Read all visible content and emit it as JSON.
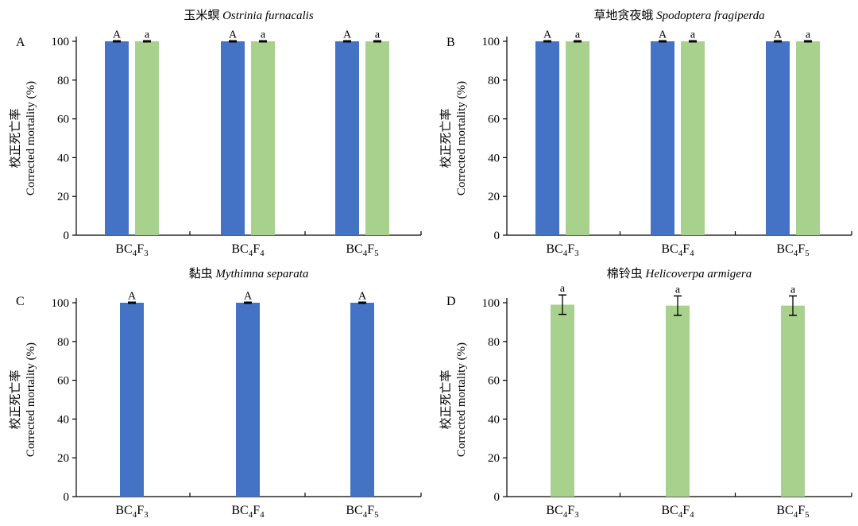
{
  "colors": {
    "blue": "#4472c4",
    "green": "#a9d18e",
    "axis": "#000000"
  },
  "chart_data": [
    {
      "panel": "A",
      "type": "bar",
      "title_cn": "玉米螟",
      "title_latin": "Ostrinia furnacalis",
      "ylabel_cn": "校正死亡率",
      "ylabel_en": "Corrected mortality (%)",
      "ylim": [
        0,
        100
      ],
      "yticks": [
        0,
        20,
        40,
        60,
        80,
        100
      ],
      "categories": [
        {
          "base": "BC",
          "sub1": "4",
          "mid": "F",
          "sub2": "3"
        },
        {
          "base": "BC",
          "sub1": "4",
          "mid": "F",
          "sub2": "4"
        },
        {
          "base": "BC",
          "sub1": "4",
          "mid": "F",
          "sub2": "5"
        }
      ],
      "series": [
        {
          "color": "blue",
          "values": [
            100,
            100,
            100
          ],
          "errors": [
            0.3,
            0.3,
            0.3
          ],
          "labels": [
            "A",
            "A",
            "A"
          ]
        },
        {
          "color": "green",
          "values": [
            100,
            100,
            100
          ],
          "errors": [
            0.3,
            0.3,
            0.3
          ],
          "labels": [
            "a",
            "a",
            "a"
          ]
        }
      ]
    },
    {
      "panel": "B",
      "type": "bar",
      "title_cn": "草地贪夜蛾",
      "title_latin": "Spodoptera fragiperda",
      "ylabel_cn": "校正死亡率",
      "ylabel_en": "Corrected mortality (%)",
      "ylim": [
        0,
        100
      ],
      "yticks": [
        0,
        20,
        40,
        60,
        80,
        100
      ],
      "categories": [
        {
          "base": "BC",
          "sub1": "4",
          "mid": "F",
          "sub2": "3"
        },
        {
          "base": "BC",
          "sub1": "4",
          "mid": "F",
          "sub2": "4"
        },
        {
          "base": "BC",
          "sub1": "4",
          "mid": "F",
          "sub2": "5"
        }
      ],
      "series": [
        {
          "color": "blue",
          "values": [
            100,
            100,
            100
          ],
          "errors": [
            0.3,
            0.3,
            0.3
          ],
          "labels": [
            "A",
            "A",
            "A"
          ]
        },
        {
          "color": "green",
          "values": [
            100,
            100,
            100
          ],
          "errors": [
            0.3,
            0.3,
            0.3
          ],
          "labels": [
            "a",
            "a",
            "a"
          ]
        }
      ]
    },
    {
      "panel": "C",
      "type": "bar",
      "title_cn": "黏虫",
      "title_latin": "Mythimna separata",
      "ylabel_cn": "校正死亡率",
      "ylabel_en": "Corrected mortality (%)",
      "ylim": [
        0,
        100
      ],
      "yticks": [
        0,
        20,
        40,
        60,
        80,
        100
      ],
      "categories": [
        {
          "base": "BC",
          "sub1": "4",
          "mid": "F",
          "sub2": "3"
        },
        {
          "base": "BC",
          "sub1": "4",
          "mid": "F",
          "sub2": "4"
        },
        {
          "base": "BC",
          "sub1": "4",
          "mid": "F",
          "sub2": "5"
        }
      ],
      "series": [
        {
          "color": "blue",
          "values": [
            100,
            100,
            100
          ],
          "errors": [
            0.3,
            0.3,
            0.3
          ],
          "labels": [
            "A",
            "A",
            "A"
          ]
        }
      ]
    },
    {
      "panel": "D",
      "type": "bar",
      "title_cn": "棉铃虫",
      "title_latin": "Helicoverpa armigera",
      "ylabel_cn": "校正死亡率",
      "ylabel_en": "Corrected mortality (%)",
      "ylim": [
        0,
        100
      ],
      "yticks": [
        0,
        20,
        40,
        60,
        80,
        100
      ],
      "categories": [
        {
          "base": "BC",
          "sub1": "4",
          "mid": "F",
          "sub2": "3"
        },
        {
          "base": "BC",
          "sub1": "4",
          "mid": "F",
          "sub2": "4"
        },
        {
          "base": "BC",
          "sub1": "4",
          "mid": "F",
          "sub2": "5"
        }
      ],
      "series": [
        {
          "color": "green",
          "values": [
            99,
            98.5,
            98.5
          ],
          "errors": [
            5,
            5,
            5
          ],
          "labels": [
            "a",
            "a",
            "a"
          ]
        }
      ]
    }
  ]
}
